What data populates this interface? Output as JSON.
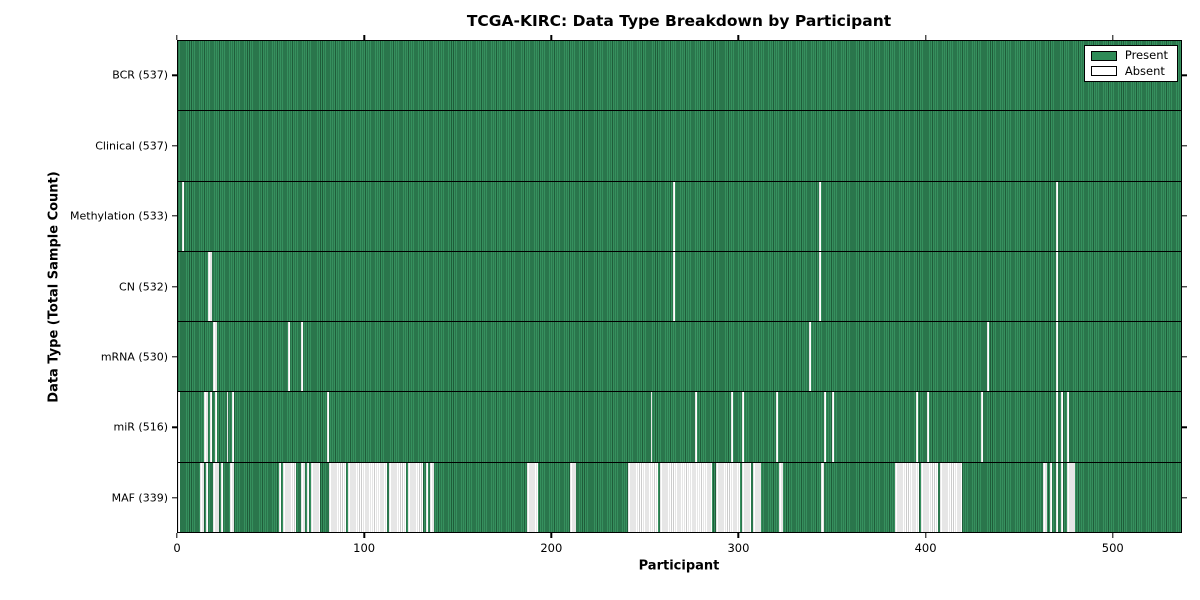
{
  "figure": {
    "title": "TCGA-KIRC: Data Type Breakdown by Participant",
    "xlabel": "Participant",
    "ylabel": "Data Type (Total Sample Count)"
  },
  "legend": {
    "items": [
      {
        "label": "Present",
        "color": "#2E8B57"
      },
      {
        "label": "Absent",
        "color": "#FFFFFF"
      }
    ]
  },
  "chart_data": {
    "type": "heatmap",
    "title": "TCGA-KIRC: Data Type Breakdown by Participant",
    "xlabel": "Participant",
    "ylabel": "Data Type (Total Sample Count)",
    "legend_position": "upper right",
    "grid": false,
    "x_range": [
      0,
      537
    ],
    "n_participants": 537,
    "x_ticks": [
      0,
      100,
      200,
      300,
      400,
      500
    ],
    "colors": {
      "present": "#2E8B57",
      "absent": "#FFFFFF",
      "edge": "#000000"
    },
    "value_encoding": {
      "present": "green cell",
      "absent": "white cell"
    },
    "rows": [
      {
        "data_type": "BCR",
        "label": "BCR (537)",
        "present_count": 537,
        "absent_ranges": []
      },
      {
        "data_type": "Clinical",
        "label": "Clinical (537)",
        "present_count": 537,
        "absent_ranges": []
      },
      {
        "data_type": "Methylation",
        "label": "Methylation (533)",
        "present_count": 533,
        "absent_ranges": [
          [
            2,
            2
          ],
          [
            265,
            265
          ],
          [
            343,
            343
          ],
          [
            470,
            470
          ]
        ]
      },
      {
        "data_type": "CN",
        "label": "CN (532)",
        "present_count": 532,
        "absent_ranges": [
          [
            16,
            17
          ],
          [
            265,
            265
          ],
          [
            343,
            343
          ],
          [
            470,
            470
          ]
        ]
      },
      {
        "data_type": "mRNA",
        "label": "mRNA (530)",
        "present_count": 530,
        "absent_ranges": [
          [
            19,
            20
          ],
          [
            59,
            59
          ],
          [
            66,
            66
          ],
          [
            338,
            338
          ],
          [
            433,
            433
          ],
          [
            470,
            470
          ]
        ]
      },
      {
        "data_type": "miR",
        "label": "miR (516)",
        "present_count": 516,
        "absent_ranges": [
          [
            0,
            0
          ],
          [
            14,
            15
          ],
          [
            17,
            17
          ],
          [
            20,
            20
          ],
          [
            26,
            26
          ],
          [
            29,
            29
          ],
          [
            80,
            80
          ],
          [
            253,
            253
          ],
          [
            277,
            277
          ],
          [
            296,
            296
          ],
          [
            302,
            302
          ],
          [
            320,
            320
          ],
          [
            346,
            346
          ],
          [
            350,
            350
          ],
          [
            395,
            395
          ],
          [
            401,
            401
          ],
          [
            430,
            430
          ],
          [
            470,
            470
          ],
          [
            473,
            473
          ],
          [
            476,
            476
          ]
        ]
      },
      {
        "data_type": "MAF",
        "label": "MAF (339)",
        "present_count": 339,
        "absent_ranges": [
          [
            0,
            0
          ],
          [
            12,
            13
          ],
          [
            15,
            15
          ],
          [
            19,
            21
          ],
          [
            23,
            23
          ],
          [
            28,
            29
          ],
          [
            54,
            54
          ],
          [
            56,
            62
          ],
          [
            66,
            67
          ],
          [
            69,
            69
          ],
          [
            71,
            75
          ],
          [
            81,
            89
          ],
          [
            91,
            111
          ],
          [
            113,
            121
          ],
          [
            123,
            130
          ],
          [
            133,
            133
          ],
          [
            135,
            136
          ],
          [
            187,
            192
          ],
          [
            210,
            212
          ],
          [
            241,
            256
          ],
          [
            258,
            285
          ],
          [
            288,
            300
          ],
          [
            302,
            306
          ],
          [
            308,
            311
          ],
          [
            322,
            323
          ],
          [
            344,
            345
          ],
          [
            384,
            396
          ],
          [
            398,
            406
          ],
          [
            408,
            419
          ],
          [
            463,
            464
          ],
          [
            467,
            467
          ],
          [
            470,
            470
          ],
          [
            473,
            473
          ],
          [
            476,
            479
          ]
        ]
      }
    ]
  }
}
